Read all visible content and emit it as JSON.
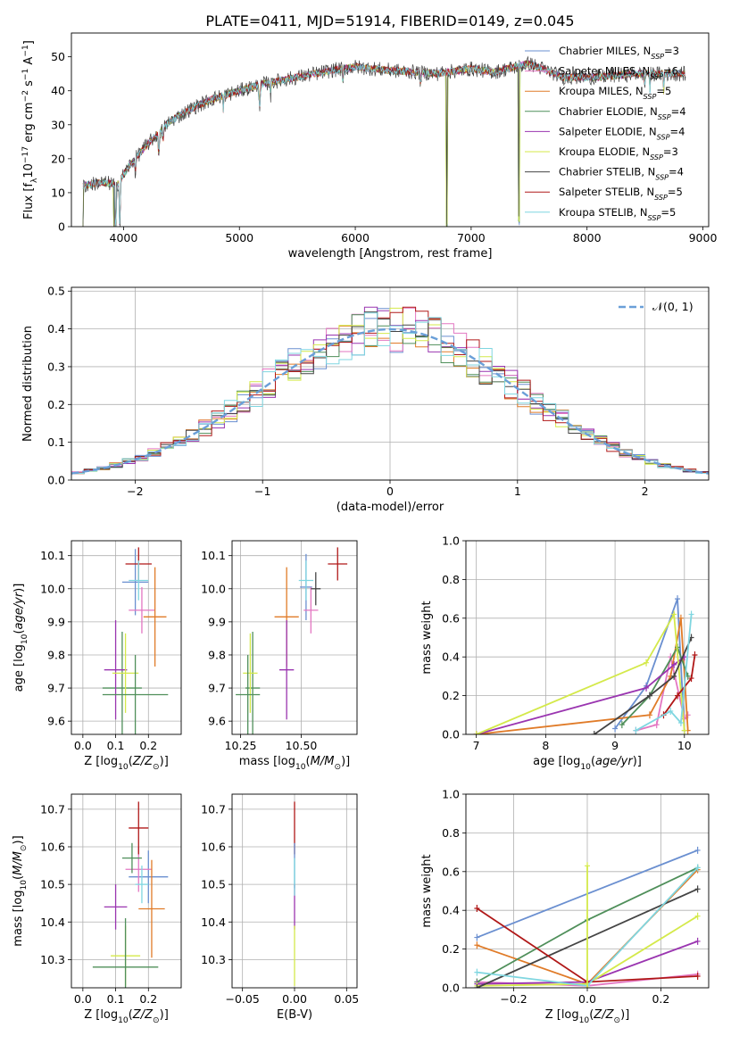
{
  "figure": {
    "title": "PLATE=0411, MJD=51914, FIBERID=0149, z=0.045"
  },
  "legend_entries": [
    {
      "label": "Chabrier MILES, N$_{SSP}$=3",
      "base": "Chabrier MILES, N",
      "sub": "SSP",
      "tail": "=3",
      "color": "#6a8fd0"
    },
    {
      "label": "Salpeter MILES, N$_{SSP}$=6",
      "base": "Salpeter MILES, N",
      "sub": "SSP",
      "tail": "=6",
      "color": "#e377c2"
    },
    {
      "label": "Kroupa MILES, N$_{SSP}$=5",
      "base": "Kroupa MILES, N",
      "sub": "SSP",
      "tail": "=5",
      "color": "#e07b28"
    },
    {
      "label": "Chabrier ELODIE, N$_{SSP}$=4",
      "base": "Chabrier ELODIE, N",
      "sub": "SSP",
      "tail": "=4",
      "color": "#4f8f5a"
    },
    {
      "label": "Salpeter ELODIE, N$_{SSP}$=4",
      "base": "Salpeter ELODIE, N",
      "sub": "SSP",
      "tail": "=4",
      "color": "#9a35b0"
    },
    {
      "label": "Kroupa ELODIE, N$_{SSP}$=3",
      "base": "Kroupa ELODIE, N",
      "sub": "SSP",
      "tail": "=3",
      "color": "#d4e94a"
    },
    {
      "label": "Chabrier STELIB, N$_{SSP}$=4",
      "base": "Chabrier STELIB, N",
      "sub": "SSP",
      "tail": "=4",
      "color": "#444444"
    },
    {
      "label": "Salpeter STELIB, N$_{SSP}$=5",
      "base": "Salpeter STELIB, N",
      "sub": "SSP",
      "tail": "=5",
      "color": "#b01818"
    },
    {
      "label": "Kroupa STELIB, N$_{SSP}$=5",
      "base": "Kroupa STELIB, N",
      "sub": "SSP",
      "tail": "=5",
      "color": "#7fd6e0"
    }
  ],
  "chart_data": [
    {
      "id": "spectrum",
      "type": "line",
      "xlabel": "wavelength [Angstrom, rest frame]",
      "ylabel": "Flux [f_λ 10^-17 erg cm^-2 s^-1 A^-1]",
      "ylabel_parts": {
        "a": "Flux [f",
        "b": "λ",
        "c": "10",
        "d": "−17",
        "e": " erg cm",
        "f": "−2",
        "g": " s",
        "h": "−1",
        "i": " A",
        "j": "−1",
        "k": "]"
      },
      "xlim": [
        3550,
        9050
      ],
      "ylim": [
        0,
        57
      ],
      "xticks": [
        4000,
        5000,
        6000,
        7000,
        8000,
        9000
      ],
      "yticks": [
        0,
        10,
        20,
        30,
        40,
        50
      ],
      "grid": false,
      "legend_position": "right",
      "data_range": [
        3650,
        8850
      ],
      "continuum_knots": [
        [
          3650,
          12
        ],
        [
          3800,
          13
        ],
        [
          3950,
          12.5
        ],
        [
          4050,
          18
        ],
        [
          4200,
          24
        ],
        [
          4400,
          31
        ],
        [
          4600,
          35
        ],
        [
          4800,
          38
        ],
        [
          5000,
          40
        ],
        [
          5200,
          42
        ],
        [
          5500,
          44
        ],
        [
          5800,
          46
        ],
        [
          6000,
          47
        ],
        [
          6300,
          46
        ],
        [
          6700,
          45
        ],
        [
          7000,
          46.5
        ],
        [
          7200,
          45.5
        ],
        [
          7500,
          48
        ],
        [
          7800,
          44
        ],
        [
          8100,
          44
        ],
        [
          8400,
          45
        ],
        [
          8850,
          45
        ]
      ],
      "dips": [
        [
          3933,
          4,
          24
        ],
        [
          3968,
          4,
          21
        ],
        [
          4102,
          4,
          5
        ],
        [
          4304,
          6,
          7
        ],
        [
          4340,
          4,
          5
        ],
        [
          4861,
          4,
          4
        ],
        [
          5175,
          8,
          6
        ],
        [
          5270,
          4,
          4
        ],
        [
          5893,
          5,
          5
        ],
        [
          6563,
          6,
          3
        ],
        [
          8498,
          4,
          4
        ],
        [
          8542,
          4,
          5
        ],
        [
          8662,
          4,
          5
        ]
      ],
      "spikes": [
        [
          3650,
          14
        ],
        [
          3920,
          20
        ],
        [
          6790,
          45
        ],
        [
          7410,
          46
        ]
      ]
    },
    {
      "id": "residuals",
      "type": "bar",
      "xlabel": "(data-model)/error",
      "ylabel": "Normed distribution",
      "xlim": [
        -2.5,
        2.5
      ],
      "ylim": [
        0,
        0.51
      ],
      "xticks": [
        -2,
        -1,
        0,
        1,
        2
      ],
      "yticks": [
        0.0,
        0.1,
        0.2,
        0.3,
        0.4,
        0.5
      ],
      "grid": true,
      "legend": [
        {
          "label": "𝒩(0, 1)",
          "color": "#6a9fd8",
          "style": "dashed"
        }
      ],
      "legend_position": "top-right",
      "bin_width": 0.1,
      "curve": "normal_pdf"
    },
    {
      "id": "age-vs-metallicity",
      "type": "scatter",
      "xlabel": "Z [log10(Z/Z⊙)]",
      "ylabel": "age [log10(age/yr)]",
      "xlim": [
        -0.035,
        0.3
      ],
      "ylim": [
        9.56,
        10.145
      ],
      "xticks": [
        0.0,
        0.1,
        0.2
      ],
      "yticks": [
        9.6,
        9.7,
        9.8,
        9.9,
        10.0,
        10.1
      ],
      "grid": true,
      "points": [
        {
          "x": 0.16,
          "y": 10.02,
          "xerr": 0.04,
          "yerr": 0.1,
          "color": "#6a8fd0"
        },
        {
          "x": 0.18,
          "y": 9.935,
          "xerr": 0.04,
          "yerr": 0.07,
          "color": "#e377c2"
        },
        {
          "x": 0.22,
          "y": 9.915,
          "xerr": 0.035,
          "yerr": 0.15,
          "color": "#e07b28"
        },
        {
          "x": 0.12,
          "y": 9.7,
          "xerr": 0.06,
          "yerr": 0.17,
          "color": "#4f8f5a"
        },
        {
          "x": 0.1,
          "y": 9.755,
          "xerr": 0.035,
          "yerr": 0.15,
          "color": "#9a35b0"
        },
        {
          "x": 0.13,
          "y": 9.745,
          "xerr": 0.04,
          "yerr": 0.12,
          "color": "#d4e94a"
        },
        {
          "x": 0.16,
          "y": 9.68,
          "xerr": 0.1,
          "yerr": 0.12,
          "color": "#4f8f5a"
        },
        {
          "x": 0.17,
          "y": 10.075,
          "xerr": 0.04,
          "yerr": 0.05,
          "color": "#b01818"
        },
        {
          "x": 0.17,
          "y": 10.025,
          "xerr": 0.03,
          "yerr": 0.06,
          "color": "#7fd6e0"
        }
      ]
    },
    {
      "id": "age-vs-mass",
      "type": "scatter",
      "xlabel": "mass [log10(M/M⊙)]",
      "ylabel": "",
      "xlim": [
        10.215,
        10.73
      ],
      "ylim": [
        9.56,
        10.145
      ],
      "xticks": [
        10.25,
        10.5
      ],
      "yticks": [
        9.6,
        9.7,
        9.8,
        9.9,
        10.0,
        10.1
      ],
      "grid": true,
      "points": [
        {
          "x": 10.52,
          "y": 10.005,
          "xerr": 0.025,
          "yerr": 0.1,
          "color": "#6a8fd0"
        },
        {
          "x": 10.54,
          "y": 9.935,
          "xerr": 0.03,
          "yerr": 0.07,
          "color": "#e377c2"
        },
        {
          "x": 10.44,
          "y": 9.915,
          "xerr": 0.05,
          "yerr": 0.15,
          "color": "#e07b28"
        },
        {
          "x": 10.3,
          "y": 9.7,
          "xerr": 0.03,
          "yerr": 0.17,
          "color": "#4f8f5a"
        },
        {
          "x": 10.44,
          "y": 9.755,
          "xerr": 0.03,
          "yerr": 0.15,
          "color": "#9a35b0"
        },
        {
          "x": 10.29,
          "y": 9.745,
          "xerr": 0.03,
          "yerr": 0.12,
          "color": "#d4e94a"
        },
        {
          "x": 10.28,
          "y": 9.68,
          "xerr": 0.05,
          "yerr": 0.12,
          "color": "#4f8f5a"
        },
        {
          "x": 10.65,
          "y": 10.075,
          "xerr": 0.04,
          "yerr": 0.05,
          "color": "#b01818"
        },
        {
          "x": 10.52,
          "y": 10.025,
          "xerr": 0.03,
          "yerr": 0.06,
          "color": "#7fd6e0"
        },
        {
          "x": 10.56,
          "y": 10.0,
          "xerr": 0.02,
          "yerr": 0.05,
          "color": "#444444"
        }
      ]
    },
    {
      "id": "mass-weight-vs-age",
      "type": "line",
      "xlabel": "age [log10(age/yr)]",
      "ylabel": "mass weight",
      "xlim": [
        6.85,
        10.35
      ],
      "ylim": [
        0,
        1
      ],
      "xticks": [
        7,
        8,
        9,
        10
      ],
      "yticks": [
        0.0,
        0.2,
        0.4,
        0.6,
        0.8,
        1.0
      ],
      "grid": true,
      "series": [
        {
          "color": "#6a8fd0",
          "points": [
            [
              9.0,
              0.03
            ],
            [
              9.45,
              0.25
            ],
            [
              9.9,
              0.7
            ],
            [
              10.0,
              0.02
            ]
          ]
        },
        {
          "color": "#e377c2",
          "points": [
            [
              9.3,
              0.02
            ],
            [
              9.6,
              0.05
            ],
            [
              9.8,
              0.4
            ],
            [
              10.0,
              0.08
            ],
            [
              10.05,
              0.1
            ]
          ]
        },
        {
          "color": "#e07b28",
          "points": [
            [
              7.0,
              0.0
            ],
            [
              9.5,
              0.1
            ],
            [
              9.8,
              0.3
            ],
            [
              9.95,
              0.6
            ],
            [
              10.05,
              0.02
            ]
          ]
        },
        {
          "color": "#4f8f5a",
          "points": [
            [
              9.1,
              0.05
            ],
            [
              9.5,
              0.2
            ],
            [
              9.9,
              0.45
            ],
            [
              10.05,
              0.3
            ]
          ]
        },
        {
          "color": "#9a35b0",
          "points": [
            [
              7.0,
              0.0
            ],
            [
              9.45,
              0.24
            ],
            [
              9.85,
              0.36
            ],
            [
              10.0,
              0.4
            ]
          ]
        },
        {
          "color": "#d4e94a",
          "points": [
            [
              7.0,
              0.0
            ],
            [
              9.45,
              0.37
            ],
            [
              9.85,
              0.62
            ],
            [
              10.0,
              0.02
            ]
          ]
        },
        {
          "color": "#444444",
          "points": [
            [
              8.7,
              0.0
            ],
            [
              9.5,
              0.2
            ],
            [
              9.85,
              0.3
            ],
            [
              10.1,
              0.5
            ]
          ]
        },
        {
          "color": "#b01818",
          "points": [
            [
              9.7,
              0.1
            ],
            [
              9.9,
              0.2
            ],
            [
              10.1,
              0.29
            ],
            [
              10.15,
              0.41
            ]
          ]
        },
        {
          "color": "#7fd6e0",
          "points": [
            [
              9.3,
              0.02
            ],
            [
              9.8,
              0.12
            ],
            [
              9.95,
              0.06
            ],
            [
              10.1,
              0.62
            ]
          ]
        }
      ]
    },
    {
      "id": "mass-vs-metallicity",
      "type": "scatter",
      "xlabel": "Z [log10(Z/Z⊙)]",
      "ylabel": "mass [log10(M/M⊙)]",
      "xlim": [
        -0.035,
        0.3
      ],
      "ylim": [
        10.225,
        10.74
      ],
      "xticks": [
        0.0,
        0.1,
        0.2
      ],
      "yticks": [
        10.3,
        10.4,
        10.5,
        10.6,
        10.7
      ],
      "grid": true,
      "points": [
        {
          "x": 0.2,
          "y": 10.52,
          "xerr": 0.06,
          "yerr": 0.07,
          "color": "#6a8fd0"
        },
        {
          "x": 0.17,
          "y": 10.54,
          "xerr": 0.04,
          "yerr": 0.06,
          "color": "#e377c2"
        },
        {
          "x": 0.21,
          "y": 10.435,
          "xerr": 0.04,
          "yerr": 0.13,
          "color": "#e07b28"
        },
        {
          "x": 0.15,
          "y": 10.57,
          "xerr": 0.03,
          "yerr": 0.04,
          "color": "#4f8f5a"
        },
        {
          "x": 0.1,
          "y": 10.44,
          "xerr": 0.035,
          "yerr": 0.06,
          "color": "#9a35b0"
        },
        {
          "x": 0.13,
          "y": 10.31,
          "xerr": 0.045,
          "yerr": 0.08,
          "color": "#d4e94a"
        },
        {
          "x": 0.13,
          "y": 10.28,
          "xerr": 0.1,
          "yerr": 0.13,
          "color": "#4f8f5a"
        },
        {
          "x": 0.17,
          "y": 10.65,
          "xerr": 0.03,
          "yerr": 0.07,
          "color": "#b01818"
        },
        {
          "x": 0.18,
          "y": 10.5,
          "xerr": 0.02,
          "yerr": 0.05,
          "color": "#7fd6e0"
        }
      ]
    },
    {
      "id": "mass-vs-ebv",
      "type": "scatter",
      "xlabel": "E(B-V)",
      "ylabel": "",
      "xlim": [
        -0.06,
        0.06
      ],
      "ylim": [
        10.225,
        10.74
      ],
      "xticks": [
        -0.05,
        0.0,
        0.05
      ],
      "yticks": [
        10.3,
        10.4,
        10.5,
        10.6,
        10.7
      ],
      "grid": true,
      "points": [
        {
          "x": 0.0,
          "y": 10.65,
          "xerr": 0,
          "yerr": 0.07,
          "color": "#b01818"
        },
        {
          "x": 0.0,
          "y": 10.55,
          "xerr": 0,
          "yerr": 0.06,
          "color": "#6a8fd0"
        },
        {
          "x": 0.0,
          "y": 10.44,
          "xerr": 0,
          "yerr": 0.06,
          "color": "#9a35b0"
        },
        {
          "x": 0.0,
          "y": 10.52,
          "xerr": 0,
          "yerr": 0.05,
          "color": "#7fd6e0"
        },
        {
          "x": 0.0,
          "y": 10.31,
          "xerr": 0,
          "yerr": 0.08,
          "color": "#d4e94a"
        }
      ]
    },
    {
      "id": "mass-weight-vs-metallicity",
      "type": "line",
      "xlabel": "Z [log10(Z/Z⊙)]",
      "ylabel": "mass weight",
      "xlim": [
        -0.33,
        0.33
      ],
      "ylim": [
        0,
        1
      ],
      "xticks": [
        -0.2,
        0.0,
        0.2
      ],
      "yticks": [
        0.0,
        0.2,
        0.4,
        0.6,
        0.8,
        1.0
      ],
      "grid": true,
      "series": [
        {
          "color": "#6a8fd0",
          "points": [
            [
              -0.3,
              0.26
            ],
            [
              0.3,
              0.71
            ]
          ]
        },
        {
          "color": "#e377c2",
          "points": [
            [
              -0.3,
              0.03
            ],
            [
              0.0,
              0.01
            ],
            [
              0.3,
              0.07
            ]
          ]
        },
        {
          "color": "#e07b28",
          "points": [
            [
              -0.3,
              0.22
            ],
            [
              0.0,
              0.02
            ],
            [
              0.3,
              0.61
            ]
          ]
        },
        {
          "color": "#4f8f5a",
          "points": [
            [
              -0.3,
              0.03
            ],
            [
              0.0,
              0.35
            ],
            [
              0.3,
              0.62
            ]
          ]
        },
        {
          "color": "#9a35b0",
          "points": [
            [
              -0.3,
              0.02
            ],
            [
              0.0,
              0.03
            ],
            [
              0.3,
              0.24
            ]
          ]
        },
        {
          "color": "#d4e94a",
          "points": [
            [
              -0.3,
              0.01
            ],
            [
              0.0,
              0.02
            ],
            [
              0.3,
              0.37
            ]
          ]
        },
        {
          "color": "#444444",
          "points": [
            [
              -0.3,
              0.0
            ],
            [
              0.3,
              0.51
            ]
          ]
        },
        {
          "color": "#b01818",
          "points": [
            [
              -0.3,
              0.41
            ],
            [
              0.0,
              0.03
            ],
            [
              0.3,
              0.06
            ]
          ]
        },
        {
          "color": "#7fd6e0",
          "points": [
            [
              -0.3,
              0.08
            ],
            [
              0.0,
              0.01
            ],
            [
              0.3,
              0.62
            ]
          ]
        },
        {
          "color": "#d4e94a",
          "points": [
            [
              0.0,
              0.0
            ],
            [
              0.0,
              0.63
            ]
          ]
        }
      ]
    }
  ]
}
